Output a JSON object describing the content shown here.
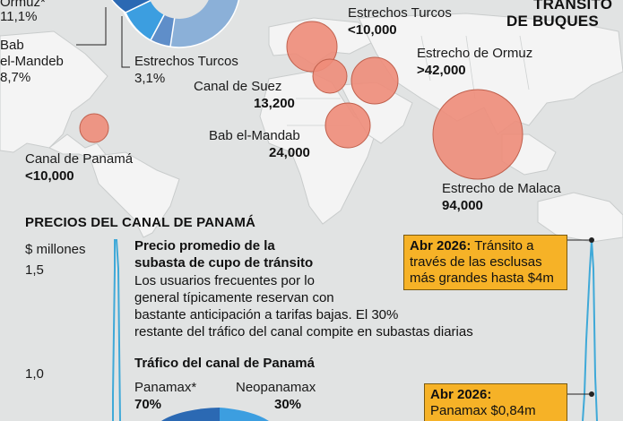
{
  "map": {
    "title_line1": "Tránsito",
    "title_line2": "de Buques",
    "straits": [
      {
        "id": "ormuz",
        "name": "Estrecho de Ormuz",
        "value": ">42,000"
      },
      {
        "id": "turcos",
        "name": "Estrechos Turcos",
        "value": "<10,000"
      },
      {
        "id": "suez",
        "name": "Canal de Suez",
        "value": "13,200"
      },
      {
        "id": "mandab",
        "name": "Bab el-Mandab",
        "value": "24,000"
      },
      {
        "id": "malaca",
        "name": "Estrecho de Malaca",
        "value": "94,000"
      },
      {
        "id": "panama",
        "name": "Canal de Panamá",
        "value": "<10,000"
      }
    ],
    "pie_labels": [
      {
        "name": "Ormuz",
        "pct": "11,1%"
      },
      {
        "name_l1": "Bab",
        "name_l2": "el-Mandeb",
        "pct": "8,7%"
      },
      {
        "name": "Estrechos Turcos",
        "pct": "3,1%"
      }
    ]
  },
  "prices": {
    "section_title": "Precios del Canal de Panamá",
    "y_unit": "$ millones",
    "y_ticks": [
      "1,5",
      "1,0"
    ],
    "auction_title_l1": "Precio promedio de la",
    "auction_title_l2": "subasta de cupo de tránsito",
    "auction_text_l1": "Los usuarios frecuentes por lo",
    "auction_text_l2": "general típicamente reservan con",
    "auction_text_l3": "bastante anticipación a tarifas bajas. El 30%",
    "auction_text_l4": "restante del tráfico del canal compite en subastas diarias",
    "traffic_title": "Tráfico del canal de Panamá",
    "panamax_label": "Panamax*",
    "panamax_pct": "70%",
    "neopanamax_label": "Neopanamax",
    "neopanamax_pct": "30%",
    "annotation1_date": "Abr 2026:",
    "annotation1_l1": "Tránsito a",
    "annotation1_l2": "través de las esclusas",
    "annotation1_l3": "más grandes hasta $4m",
    "annotation2_date": "Abr 2026:",
    "annotation2_l2": "Panamax $0,84m",
    "colors": {
      "circle": "#ee8c79",
      "line": "#3fa9d8",
      "box": "#f6b227",
      "pie_dark": "#2b69b3",
      "pie_light": "#3c9ee0"
    }
  }
}
